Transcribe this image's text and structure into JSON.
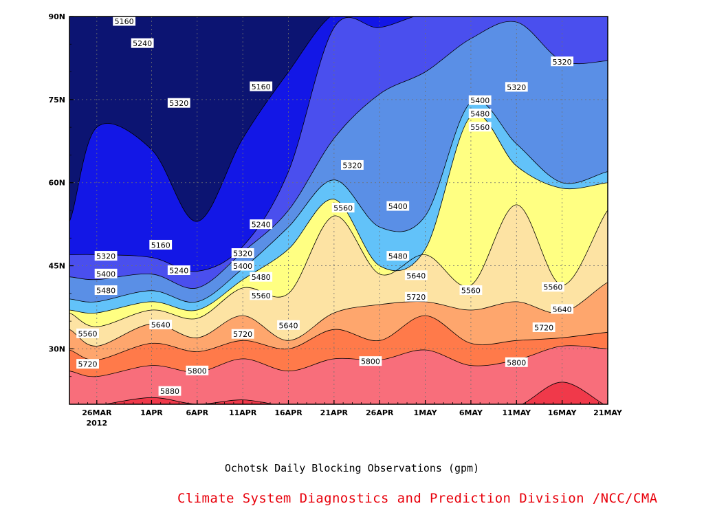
{
  "chart_data": {
    "type": "heatmap",
    "subtype": "filled-contour time-latitude section",
    "title": "Ochotsk Daily Blocking Observations (gpm)",
    "credit": "Climate System Diagnostics and Prediction Division /NCC/CMA",
    "x_axis": {
      "start_date": "2012-03-23",
      "end_date": "2012-05-21",
      "tick_dates": [
        "2012-03-26",
        "2012-04-01",
        "2012-04-06",
        "2012-04-11",
        "2012-04-16",
        "2012-04-21",
        "2012-04-26",
        "2012-05-01",
        "2012-05-06",
        "2012-05-11",
        "2012-05-16",
        "2012-05-21"
      ],
      "tick_labels": [
        "26MAR",
        "1APR",
        "6APR",
        "11APR",
        "16APR",
        "21APR",
        "26APR",
        "1MAY",
        "6MAY",
        "11MAY",
        "16MAY",
        "21MAY"
      ],
      "year_label": "2012"
    },
    "y_axis": {
      "range": [
        20,
        90
      ],
      "tick_values": [
        30,
        45,
        60,
        75,
        90
      ],
      "tick_labels": [
        "30N",
        "45N",
        "60N",
        "75N",
        "90N"
      ]
    },
    "grid": "dotted",
    "contour_levels": [
      5160,
      5240,
      5320,
      5400,
      5480,
      5560,
      5640,
      5720,
      5800,
      5880
    ],
    "fill_colors": [
      "#0c1472",
      "#1317e6",
      "#4a4fee",
      "#5a8fe6",
      "#62c2f9",
      "#ffff82",
      "#fde3a3",
      "#fea66d",
      "#ff7a4a",
      "#f86e7b",
      "#f0394a"
    ],
    "x": [
      "2012-03-23",
      "2012-03-26",
      "2012-04-01",
      "2012-04-06",
      "2012-04-11",
      "2012-04-16",
      "2012-04-21",
      "2012-04-26",
      "2012-05-01",
      "2012-05-06",
      "2012-05-11",
      "2012-05-16",
      "2012-05-21"
    ],
    "isolines": [
      {
        "level": 5880,
        "lat": [
          19.8,
          19.8,
          21.2,
          20.0,
          20.8,
          19.6,
          19.4,
          19.6,
          19.6,
          19.6,
          19.6,
          24.0,
          19.6
        ]
      },
      {
        "level": 5800,
        "lat": [
          26.0,
          25.0,
          27.0,
          25.8,
          28.2,
          26.0,
          28.2,
          28.0,
          29.8,
          27.0,
          28.0,
          30.5,
          30.0
        ]
      },
      {
        "level": 5720,
        "lat": [
          29.8,
          28.0,
          31.0,
          29.5,
          31.5,
          30.0,
          33.5,
          31.5,
          36.0,
          31.0,
          31.5,
          32.0,
          33.0
        ]
      },
      {
        "level": 5640,
        "lat": [
          33.5,
          30.5,
          34.5,
          32.0,
          36.0,
          31.5,
          36.5,
          38.0,
          38.5,
          37.0,
          38.5,
          36.5,
          42.0
        ]
      },
      {
        "level": 5560,
        "lat": [
          36.5,
          34.0,
          37.0,
          35.5,
          41.0,
          40.0,
          54.0,
          43.5,
          47.0,
          41.5,
          56.0,
          41.5,
          55.0
        ]
      },
      {
        "level": 5480,
        "lat": [
          37.0,
          36.5,
          38.5,
          37.0,
          42.5,
          48.0,
          57.0,
          45.0,
          48.0,
          72.0,
          63.0,
          59.0,
          60.0
        ]
      },
      {
        "level": 5400,
        "lat": [
          39.0,
          38.5,
          40.5,
          38.5,
          44.5,
          52.0,
          60.5,
          52.0,
          54.0,
          74.5,
          67.0,
          60.0,
          62.0
        ]
      },
      {
        "level": 5320,
        "lat": [
          43.0,
          42.5,
          43.5,
          41.0,
          47.5,
          55.0,
          68.0,
          76.0,
          80.0,
          86.0,
          89.0,
          82.0,
          82.0
        ]
      },
      {
        "level": 5240,
        "lat": [
          47.0,
          47.0,
          46.5,
          44.0,
          48.5,
          62.0,
          88.0,
          88.0,
          90.5,
          90.5,
          90.5,
          90.5,
          90.5
        ]
      },
      {
        "level": 5160,
        "lat": [
          53.0,
          70.0,
          66.0,
          53.0,
          68.0,
          80.0,
          90.5,
          90.5,
          90.5,
          90.5,
          90.5,
          90.5,
          90.5
        ]
      }
    ],
    "contour_labels": [
      {
        "text": "5160",
        "date": "2012-03-29",
        "lat": 89.2
      },
      {
        "text": "5240",
        "date": "2012-03-31",
        "lat": 85.2
      },
      {
        "text": "5320",
        "date": "2012-04-04",
        "lat": 74.4
      },
      {
        "text": "5160",
        "date": "2012-04-13",
        "lat": 77.4
      },
      {
        "text": "5320",
        "date": "2012-04-23",
        "lat": 63.2
      },
      {
        "text": "5160",
        "date": "2012-04-02",
        "lat": 48.8
      },
      {
        "text": "5240",
        "date": "2012-04-04",
        "lat": 44.2
      },
      {
        "text": "5240",
        "date": "2012-04-13",
        "lat": 52.5
      },
      {
        "text": "5320",
        "date": "2012-04-11",
        "lat": 47.3
      },
      {
        "text": "5400",
        "date": "2012-04-11",
        "lat": 45.0
      },
      {
        "text": "5480",
        "date": "2012-04-13",
        "lat": 43.0
      },
      {
        "text": "5560",
        "date": "2012-04-13",
        "lat": 39.7
      },
      {
        "text": "5560",
        "date": "2012-04-22",
        "lat": 55.5
      },
      {
        "text": "5400",
        "date": "2012-04-28",
        "lat": 55.8
      },
      {
        "text": "5480",
        "date": "2012-04-28",
        "lat": 46.8
      },
      {
        "text": "5640",
        "date": "2012-04-30",
        "lat": 43.3
      },
      {
        "text": "5720",
        "date": "2012-04-30",
        "lat": 39.4
      },
      {
        "text": "5320",
        "date": "2012-03-27",
        "lat": 46.8
      },
      {
        "text": "5400",
        "date": "2012-03-27",
        "lat": 43.6
      },
      {
        "text": "5480",
        "date": "2012-03-27",
        "lat": 40.6
      },
      {
        "text": "5560",
        "date": "2012-03-25",
        "lat": 32.8
      },
      {
        "text": "5640",
        "date": "2012-04-02",
        "lat": 34.4
      },
      {
        "text": "5640",
        "date": "2012-04-16",
        "lat": 34.3
      },
      {
        "text": "5720",
        "date": "2012-04-11",
        "lat": 32.7
      },
      {
        "text": "5720",
        "date": "2012-03-25",
        "lat": 27.3
      },
      {
        "text": "5800",
        "date": "2012-04-06",
        "lat": 26.1
      },
      {
        "text": "5800",
        "date": "2012-04-25",
        "lat": 27.8
      },
      {
        "text": "5880",
        "date": "2012-04-03",
        "lat": 22.4
      },
      {
        "text": "5320",
        "date": "2012-05-11",
        "lat": 77.3
      },
      {
        "text": "5400",
        "date": "2012-05-07",
        "lat": 74.9
      },
      {
        "text": "5480",
        "date": "2012-05-07",
        "lat": 72.5
      },
      {
        "text": "5560",
        "date": "2012-05-07",
        "lat": 70.1
      },
      {
        "text": "5560",
        "date": "2012-05-06",
        "lat": 40.6
      },
      {
        "text": "5560",
        "date": "2012-05-15",
        "lat": 41.2
      },
      {
        "text": "5640",
        "date": "2012-05-16",
        "lat": 37.2
      },
      {
        "text": "5720",
        "date": "2012-05-14",
        "lat": 33.9
      },
      {
        "text": "5800",
        "date": "2012-05-11",
        "lat": 27.6
      },
      {
        "text": "5320",
        "date": "2012-05-16",
        "lat": 81.9
      }
    ]
  }
}
